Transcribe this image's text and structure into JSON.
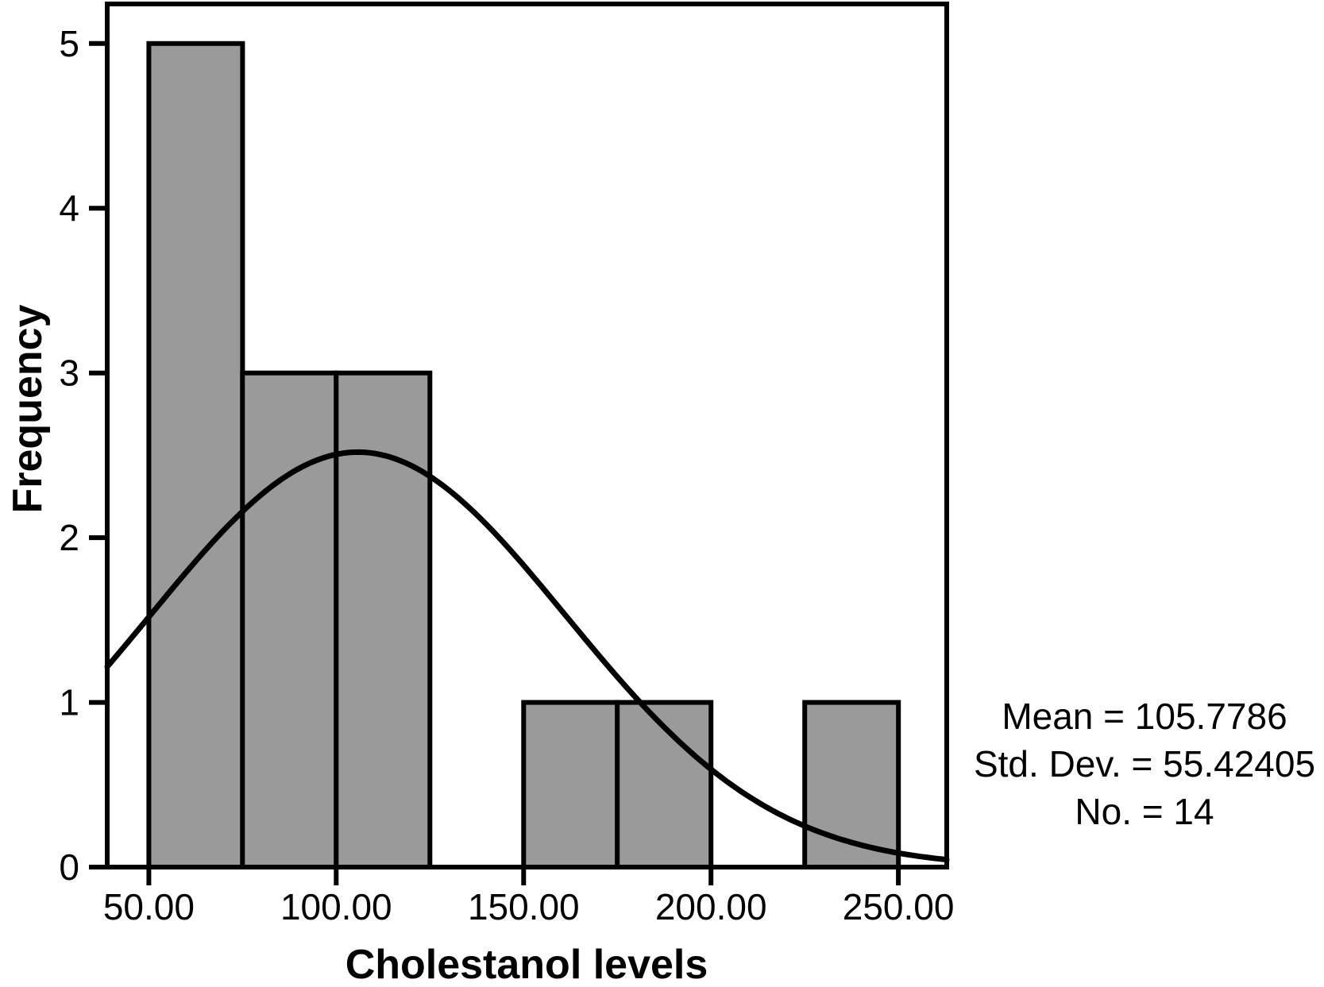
{
  "chart_data": {
    "type": "histogram",
    "title": "",
    "xlabel": "Cholestanol levels",
    "ylabel": "Frequency",
    "bin_edges": [
      50,
      75,
      100,
      125,
      150,
      175,
      200,
      225,
      250
    ],
    "counts": [
      5,
      3,
      3,
      0,
      1,
      1,
      0,
      1
    ],
    "total_n": 14,
    "x_ticks": [
      {
        "value": 50,
        "label": "50.00"
      },
      {
        "value": 100,
        "label": "100.00"
      },
      {
        "value": 150,
        "label": "150.00"
      },
      {
        "value": 200,
        "label": "200.00"
      },
      {
        "value": 250,
        "label": "250.00"
      }
    ],
    "y_ticks": [
      {
        "value": 0,
        "label": "0"
      },
      {
        "value": 1,
        "label": "1"
      },
      {
        "value": 2,
        "label": "2"
      },
      {
        "value": 3,
        "label": "3"
      },
      {
        "value": 4,
        "label": "4"
      },
      {
        "value": 5,
        "label": "5"
      }
    ],
    "xlim": [
      38.9,
      262.9
    ],
    "ylim": [
      0,
      5.24
    ],
    "grid": false,
    "legend": "none",
    "bar_fill": "#9A9A9A",
    "bar_stroke": "#000000",
    "axis_color": "#000000",
    "normal_curve": {
      "shown": true,
      "mean": 105.7786,
      "sd": 55.42405,
      "n": 14,
      "bin_width": 25,
      "color": "#000000",
      "peak_height": 2.52
    },
    "stats_box": {
      "position": "right-of-plot",
      "lines": [
        "Mean = 105.7786",
        "Std. Dev. = 55.42405",
        "No. = 14"
      ]
    }
  }
}
